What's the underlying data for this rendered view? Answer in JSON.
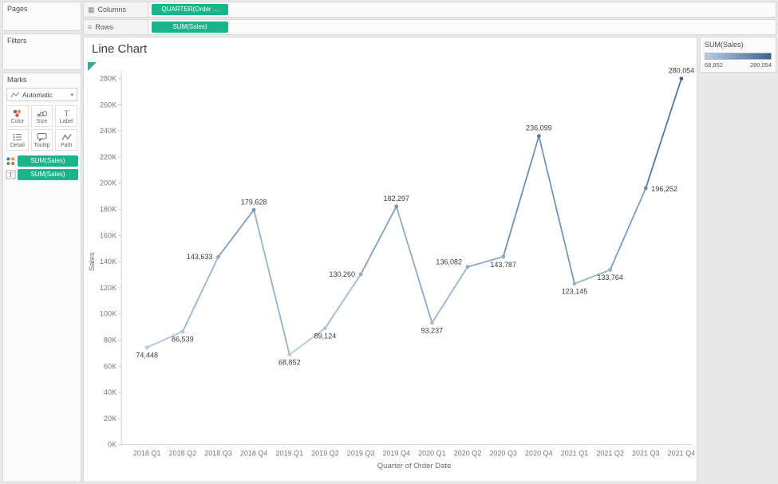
{
  "panels": {
    "pages": {
      "title": "Pages"
    },
    "filters": {
      "title": "Filters"
    },
    "marks": {
      "title": "Marks",
      "mark_type": "Automatic",
      "buttons": [
        {
          "label": "Color"
        },
        {
          "label": "Size"
        },
        {
          "label": "Label"
        },
        {
          "label": "Detail"
        },
        {
          "label": "Tooltip"
        },
        {
          "label": "Path"
        }
      ],
      "pills": [
        {
          "label": "SUM(Sales)",
          "role": "color"
        },
        {
          "label": "SUM(Sales)",
          "role": "label"
        }
      ]
    }
  },
  "shelves": {
    "columns": {
      "label": "Columns",
      "pill": "QUARTER(Order ..."
    },
    "rows": {
      "label": "Rows",
      "pill": "SUM(Sales)"
    }
  },
  "legend": {
    "title": "SUM(Sales)",
    "min_label": "68,852",
    "max_label": "280,054"
  },
  "colors": {
    "pill_green": "#1bb38a"
  },
  "chart_data": {
    "type": "line",
    "title": "Line Chart",
    "xlabel": "Quarter of Order Date",
    "ylabel": "Sales",
    "x": [
      "2018 Q1",
      "2018 Q2",
      "2018 Q3",
      "2018 Q4",
      "2019 Q1",
      "2019 Q2",
      "2019 Q3",
      "2019 Q4",
      "2020 Q1",
      "2020 Q2",
      "2020 Q3",
      "2020 Q4",
      "2021 Q1",
      "2021 Q2",
      "2021 Q3",
      "2021 Q4"
    ],
    "values": [
      74448,
      86539,
      143633,
      179628,
      68852,
      89124,
      130260,
      182297,
      93237,
      136082,
      143787,
      236099,
      123145,
      133764,
      196252,
      280054
    ],
    "labels": [
      "74,448",
      "86,539",
      "143,633",
      "179,628",
      "68,852",
      "89,124",
      "130,260",
      "182,297",
      "93,237",
      "136,082",
      "143,787",
      "236,099",
      "123,145",
      "133,764",
      "196,252",
      "280,054"
    ],
    "label_pos": [
      "below",
      "below",
      "left",
      "above",
      "below",
      "below",
      "left",
      "above",
      "below",
      "above-left",
      "below",
      "above",
      "below",
      "below",
      "right",
      "above"
    ],
    "ylim": [
      0,
      280000
    ],
    "ytick_step": 20000,
    "grid": false,
    "legend_position": "right",
    "color_low": "#b9cde2",
    "color_high": "#3a6491",
    "color_domain": [
      68852,
      280054
    ]
  }
}
